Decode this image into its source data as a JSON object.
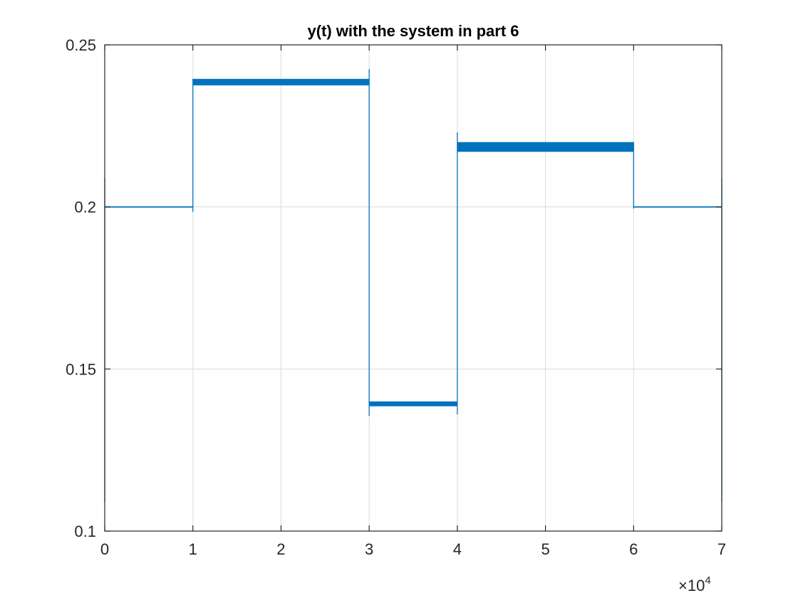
{
  "chart_data": {
    "type": "line",
    "title": "y(t) with the system in part 6",
    "xlabel": "",
    "ylabel": "",
    "xlim": [
      0,
      70000
    ],
    "ylim": [
      0.1,
      0.25
    ],
    "x_ticks": [
      0,
      10000,
      20000,
      30000,
      40000,
      50000,
      60000,
      70000
    ],
    "x_tick_labels": [
      "0",
      "1",
      "2",
      "3",
      "4",
      "5",
      "6",
      "7"
    ],
    "y_ticks": [
      0.1,
      0.15,
      0.2,
      0.25
    ],
    "y_tick_labels": [
      "0.1",
      "0.15",
      "0.2",
      "0.25"
    ],
    "x_exponent_label": "×10",
    "x_exponent_power": "4",
    "grid": true,
    "colors": {
      "line": "#0072BD",
      "axes": "#262626",
      "grid": "#dcdcdc"
    },
    "series": [
      {
        "segments": [
          {
            "x0": 0,
            "x1": 10000,
            "y_low": 0.1998,
            "y_high": 0.2002
          },
          {
            "x0": 10000,
            "x1": 30000,
            "y_low": 0.2375,
            "y_high": 0.2395
          },
          {
            "x0": 30000,
            "x1": 40000,
            "y_low": 0.1385,
            "y_high": 0.14
          },
          {
            "x0": 40000,
            "x1": 60000,
            "y_low": 0.217,
            "y_high": 0.22
          },
          {
            "x0": 60000,
            "x1": 70000,
            "y_low": 0.1998,
            "y_high": 0.2002
          }
        ],
        "spikes": [
          {
            "x": 0,
            "y_min": 0.109,
            "y_max": 0.209
          },
          {
            "x": 10000,
            "y_min": 0.1985,
            "y_max": 0.2395
          },
          {
            "x": 30000,
            "y_min": 0.1355,
            "y_max": 0.2425
          },
          {
            "x": 40000,
            "y_min": 0.136,
            "y_max": 0.223
          },
          {
            "x": 60000,
            "y_min": 0.1995,
            "y_max": 0.22
          },
          {
            "x": 70000,
            "y_min": 0.109,
            "y_max": 0.209
          }
        ]
      }
    ]
  }
}
